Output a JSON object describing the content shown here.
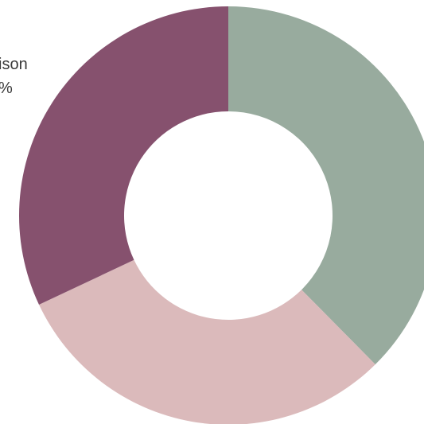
{
  "chart_data": {
    "type": "pie",
    "donut": true,
    "slices": [
      {
        "label": "",
        "value": 37.6,
        "color": "#98ab9e"
      },
      {
        "label": "",
        "value": 30.4,
        "color": "#dbbabb"
      },
      {
        "label": "",
        "value": 32.0,
        "color": "#86516e"
      }
    ],
    "visible_labels": [
      {
        "text": "ison"
      },
      {
        "text": "%"
      }
    ],
    "legend": "none"
  }
}
